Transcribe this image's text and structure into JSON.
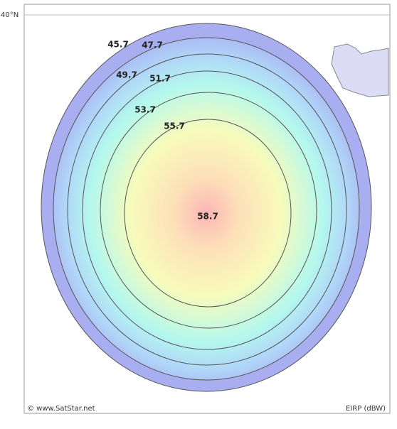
{
  "map": {
    "latitude_label": "40°N",
    "contours": [
      "45.7",
      "47.7",
      "49.7",
      "51.7",
      "53.7",
      "55.7"
    ],
    "peak": "58.7",
    "credit": "© www.SatStar.net",
    "legend_unit": "EIRP (dBW)"
  }
}
